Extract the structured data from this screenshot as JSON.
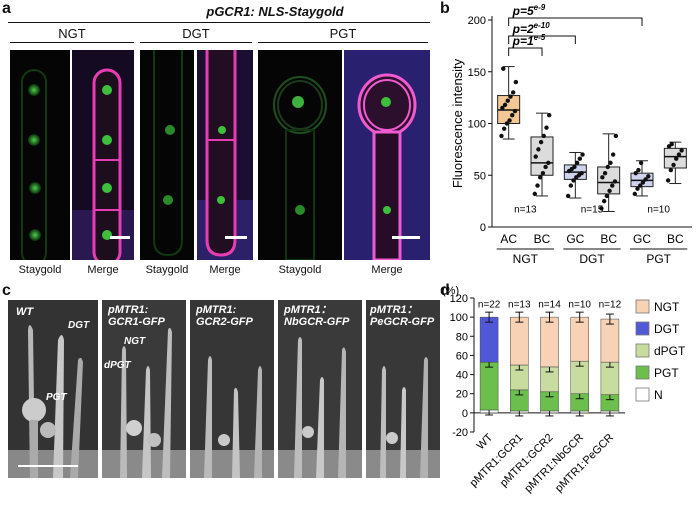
{
  "panels": {
    "a": {
      "letter": "a",
      "title": "pGCR1: NLS-Staygold",
      "groups": [
        "NGT",
        "DGT",
        "PGT"
      ],
      "captions": [
        "Staygold",
        "Merge",
        "Staygold",
        "Merge",
        "Staygold",
        "Merge"
      ]
    },
    "b": {
      "letter": "b"
    },
    "c": {
      "letter": "c",
      "labels": [
        "WT",
        "pMTR1:",
        "GCR1-GFP",
        "pMTR1:",
        "GCR2-GFP",
        "pMTR1：",
        "NbGCR-GFP",
        "pMTR1：",
        "PeGCR-GFP"
      ],
      "annotations": [
        "DGT",
        "PGT",
        "NGT",
        "dPGT"
      ]
    },
    "d": {
      "letter": "d"
    }
  },
  "chart_data": [
    {
      "type": "box",
      "panel": "b",
      "ylabel": "Fluorescence intensity",
      "ylim": [
        0,
        200
      ],
      "yticks": [
        0,
        50,
        100,
        150,
        200
      ],
      "categories": [
        "AC",
        "BC",
        "GC",
        "BC",
        "GC",
        "BC"
      ],
      "groups": [
        "NGT",
        "DGT",
        "PGT"
      ],
      "n_labels": [
        "n=13",
        "n=15",
        "n=10"
      ],
      "boxes": [
        {
          "min": 85,
          "q1": 100,
          "median": 113,
          "q3": 127,
          "max": 155,
          "fill": "#f3c894"
        },
        {
          "min": 30,
          "q1": 50,
          "median": 62,
          "q3": 87,
          "max": 110,
          "fill": "#dcdcdc"
        },
        {
          "min": 28,
          "q1": 46,
          "median": 53,
          "q3": 60,
          "max": 72,
          "fill": "#cfd3ee"
        },
        {
          "min": 15,
          "q1": 32,
          "median": 43,
          "q3": 58,
          "max": 90,
          "fill": "#dcdcdc"
        },
        {
          "min": 30,
          "q1": 39,
          "median": 45,
          "q3": 52,
          "max": 64,
          "fill": "#cfd3ee"
        },
        {
          "min": 42,
          "q1": 57,
          "median": 68,
          "q3": 76,
          "max": 82,
          "fill": "#dcdcdc"
        }
      ],
      "points": [
        [
          88,
          95,
          100,
          103,
          108,
          112,
          115,
          118,
          122,
          126,
          130,
          140,
          153
        ],
        [
          32,
          40,
          48,
          52,
          58,
          62,
          68,
          75,
          82,
          88,
          96,
          108
        ],
        [
          30,
          40,
          45,
          48,
          50,
          52,
          54,
          56,
          58,
          62,
          66,
          70
        ],
        [
          18,
          25,
          30,
          35,
          40,
          44,
          48,
          52,
          58,
          62,
          70,
          88
        ],
        [
          32,
          37,
          40,
          43,
          46,
          49,
          52,
          55,
          62
        ],
        [
          45,
          55,
          60,
          66,
          70,
          74,
          78,
          80
        ]
      ],
      "comparisons": [
        {
          "label_base": "p=1",
          "label_exp": "e-5"
        },
        {
          "label_base": "p=2",
          "label_exp": "e-10"
        },
        {
          "label_base": "p=5",
          "label_exp": "e-9"
        }
      ]
    },
    {
      "type": "stacked_bar",
      "panel": "d",
      "ylabel": "(%)",
      "ylim": [
        -20,
        120
      ],
      "yticks": [
        -20,
        0,
        20,
        40,
        60,
        80,
        100,
        120
      ],
      "categories": [
        "WT",
        "pMTR1:GCR1",
        "pMTR1:GCR2",
        "pMTR1:NbGCR",
        "pMTR1:PeGCR"
      ],
      "n_labels": [
        "n=22",
        "n=13",
        "n=14",
        "n=10",
        "n=12"
      ],
      "legend": [
        "NGT",
        "DGT",
        "dPGT",
        "PGT",
        "N"
      ],
      "legend_colors": [
        "#f8d2b4",
        "#5058d8",
        "#c8dca0",
        "#6cbf4c",
        "#ffffff"
      ],
      "series": [
        {
          "name": "N",
          "values": [
            3,
            2,
            2,
            2,
            2
          ],
          "color": "#ffffff"
        },
        {
          "name": "PGT",
          "values": [
            50,
            22,
            20,
            18,
            17
          ],
          "color": "#6cbf4c"
        },
        {
          "name": "dPGT",
          "values": [
            0,
            26,
            26,
            34,
            34
          ],
          "color": "#c8dca0"
        },
        {
          "name": "DGT",
          "values": [
            47,
            0,
            0,
            0,
            0
          ],
          "color": "#5058d8"
        },
        {
          "name": "NGT",
          "values": [
            0,
            50,
            52,
            46,
            45
          ],
          "color": "#f8d2b4"
        }
      ]
    }
  ]
}
